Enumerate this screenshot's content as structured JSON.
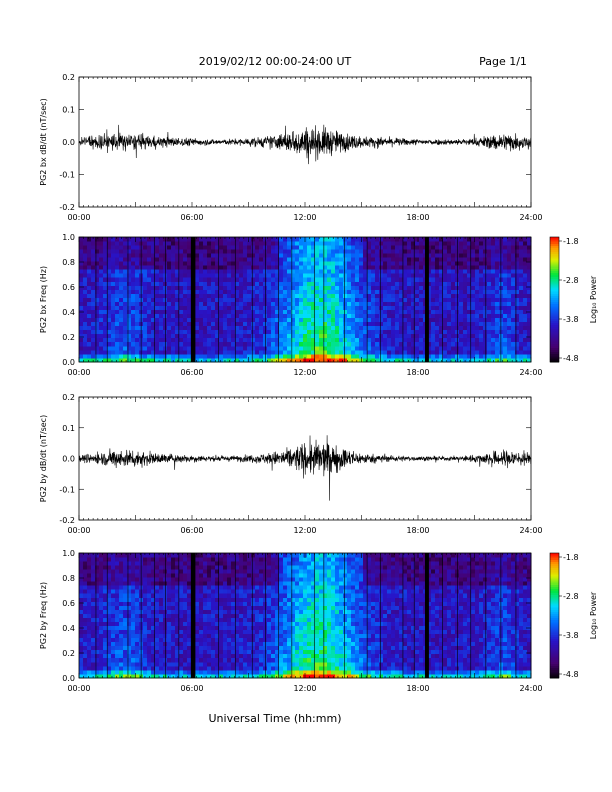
{
  "header": {
    "title": "2019/02/12  00:00-24:00 UT",
    "page": "Page 1/1"
  },
  "xlabel": "Universal Time (hh:mm)",
  "colors": {
    "trace": "#000000",
    "background": "#ffffff"
  },
  "time_ticks": [
    "00:00",
    "06:00",
    "12:00",
    "18:00",
    "24:00"
  ],
  "colorbar": {
    "label": "Log₁₀ Power",
    "ticks": [
      "-1.8",
      "-2.8",
      "-3.8",
      "-4.8"
    ]
  },
  "chart_data": [
    {
      "type": "line",
      "ylabel": "PG2 bx dB/dt (nT/sec)",
      "xlim": [
        0,
        24
      ],
      "ylim": [
        -0.2,
        0.2
      ],
      "yticks": [
        "-0.2",
        "-0.1",
        "0.0",
        "0.1",
        "0.2"
      ],
      "envelope_hours": [
        0,
        1,
        2,
        3,
        4,
        5,
        6,
        7,
        8,
        9,
        10,
        11,
        12,
        13,
        14,
        15,
        16,
        17,
        18,
        19,
        20,
        21,
        22,
        23,
        24
      ],
      "envelope_amplitude": [
        0.02,
        0.04,
        0.05,
        0.04,
        0.03,
        0.025,
        0.02,
        0.015,
        0.015,
        0.02,
        0.03,
        0.05,
        0.08,
        0.08,
        0.05,
        0.03,
        0.025,
        0.02,
        0.015,
        0.015,
        0.015,
        0.02,
        0.04,
        0.05,
        0.03
      ]
    },
    {
      "type": "heatmap",
      "ylabel": "PG2 bx Freq (Hz)",
      "xlim": [
        0,
        24
      ],
      "ylim": [
        0.0,
        1.0
      ],
      "yticks": [
        "0.0",
        "0.2",
        "0.4",
        "0.6",
        "0.8",
        "1.0"
      ],
      "zlim": [
        -4.8,
        -1.8
      ],
      "zlabel": "Log₁₀ Power"
    },
    {
      "type": "line",
      "ylabel": "PG2 by dB/dt (nT/sec)",
      "xlim": [
        0,
        24
      ],
      "ylim": [
        -0.2,
        0.2
      ],
      "yticks": [
        "-0.2",
        "-0.1",
        "0.0",
        "0.1",
        "0.2"
      ],
      "envelope_hours": [
        0,
        1,
        2,
        3,
        4,
        5,
        6,
        7,
        8,
        9,
        10,
        11,
        12,
        13,
        14,
        15,
        16,
        17,
        18,
        19,
        20,
        21,
        22,
        23,
        24
      ],
      "envelope_amplitude": [
        0.02,
        0.03,
        0.05,
        0.05,
        0.03,
        0.025,
        0.02,
        0.015,
        0.015,
        0.02,
        0.03,
        0.05,
        0.09,
        0.1,
        0.06,
        0.03,
        0.02,
        0.015,
        0.012,
        0.012,
        0.012,
        0.02,
        0.04,
        0.05,
        0.03
      ]
    },
    {
      "type": "heatmap",
      "ylabel": "PG2 by Freq (Hz)",
      "xlim": [
        0,
        24
      ],
      "ylim": [
        0.0,
        1.0
      ],
      "yticks": [
        "0.0",
        "0.2",
        "0.4",
        "0.6",
        "0.8",
        "1.0"
      ],
      "zlim": [
        -4.8,
        -1.8
      ],
      "zlabel": "Log₁₀ Power"
    }
  ]
}
